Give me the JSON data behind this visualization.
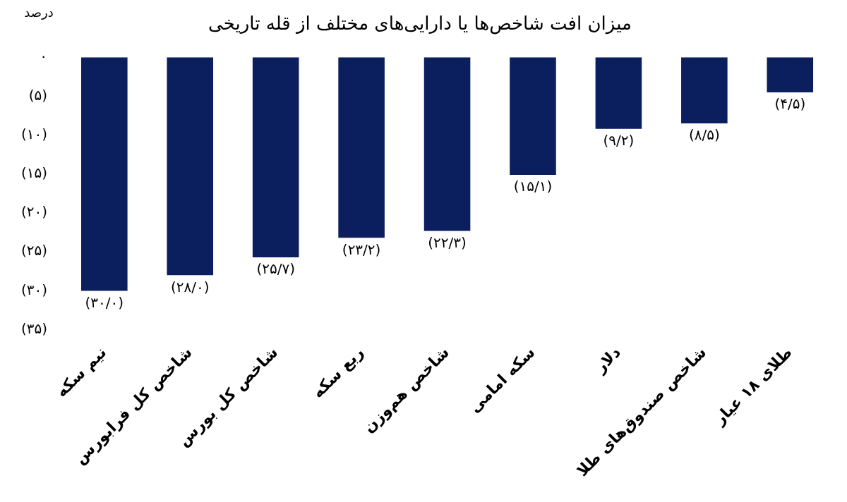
{
  "chart_data": {
    "type": "bar",
    "title": "میزان افت شاخص‌ها یا دارایی‌های مختلف از قله تاریخی",
    "ylabel": "درصد",
    "categories": [
      "نیم سکه",
      "شاخص کل فرابورس",
      "شاخص کل بورس",
      "ربع سکه",
      "شاخص هم‌وزن",
      "سکه امامی",
      "دلار",
      "شاخص صندوق‌های طلا",
      "طلای ۱۸ عیار"
    ],
    "values": [
      -30.0,
      -28.0,
      -25.7,
      -23.2,
      -22.3,
      -15.1,
      -9.2,
      -8.5,
      -4.5
    ],
    "value_labels": [
      "(۳۰/۰)",
      "(۲۸/۰)",
      "(۲۵/۷)",
      "(۲۳/۲)",
      "(۲۲/۳)",
      "(۱۵/۱)",
      "(۹/۲)",
      "(۸/۵)",
      "(۴/۵)"
    ],
    "color": "#0b1f5e",
    "ylim": [
      -35,
      0
    ],
    "yticks": [
      {
        "value": 0,
        "label": "۰"
      },
      {
        "value": -5,
        "label": "(۵)"
      },
      {
        "value": -10,
        "label": "(۱۰)"
      },
      {
        "value": -15,
        "label": "(۱۵)"
      },
      {
        "value": -20,
        "label": "(۲۰)"
      },
      {
        "value": -25,
        "label": "(۲۵)"
      },
      {
        "value": -30,
        "label": "(۳۰)"
      },
      {
        "value": -35,
        "label": "(۳۵)"
      }
    ],
    "grid": false,
    "legend": false
  }
}
